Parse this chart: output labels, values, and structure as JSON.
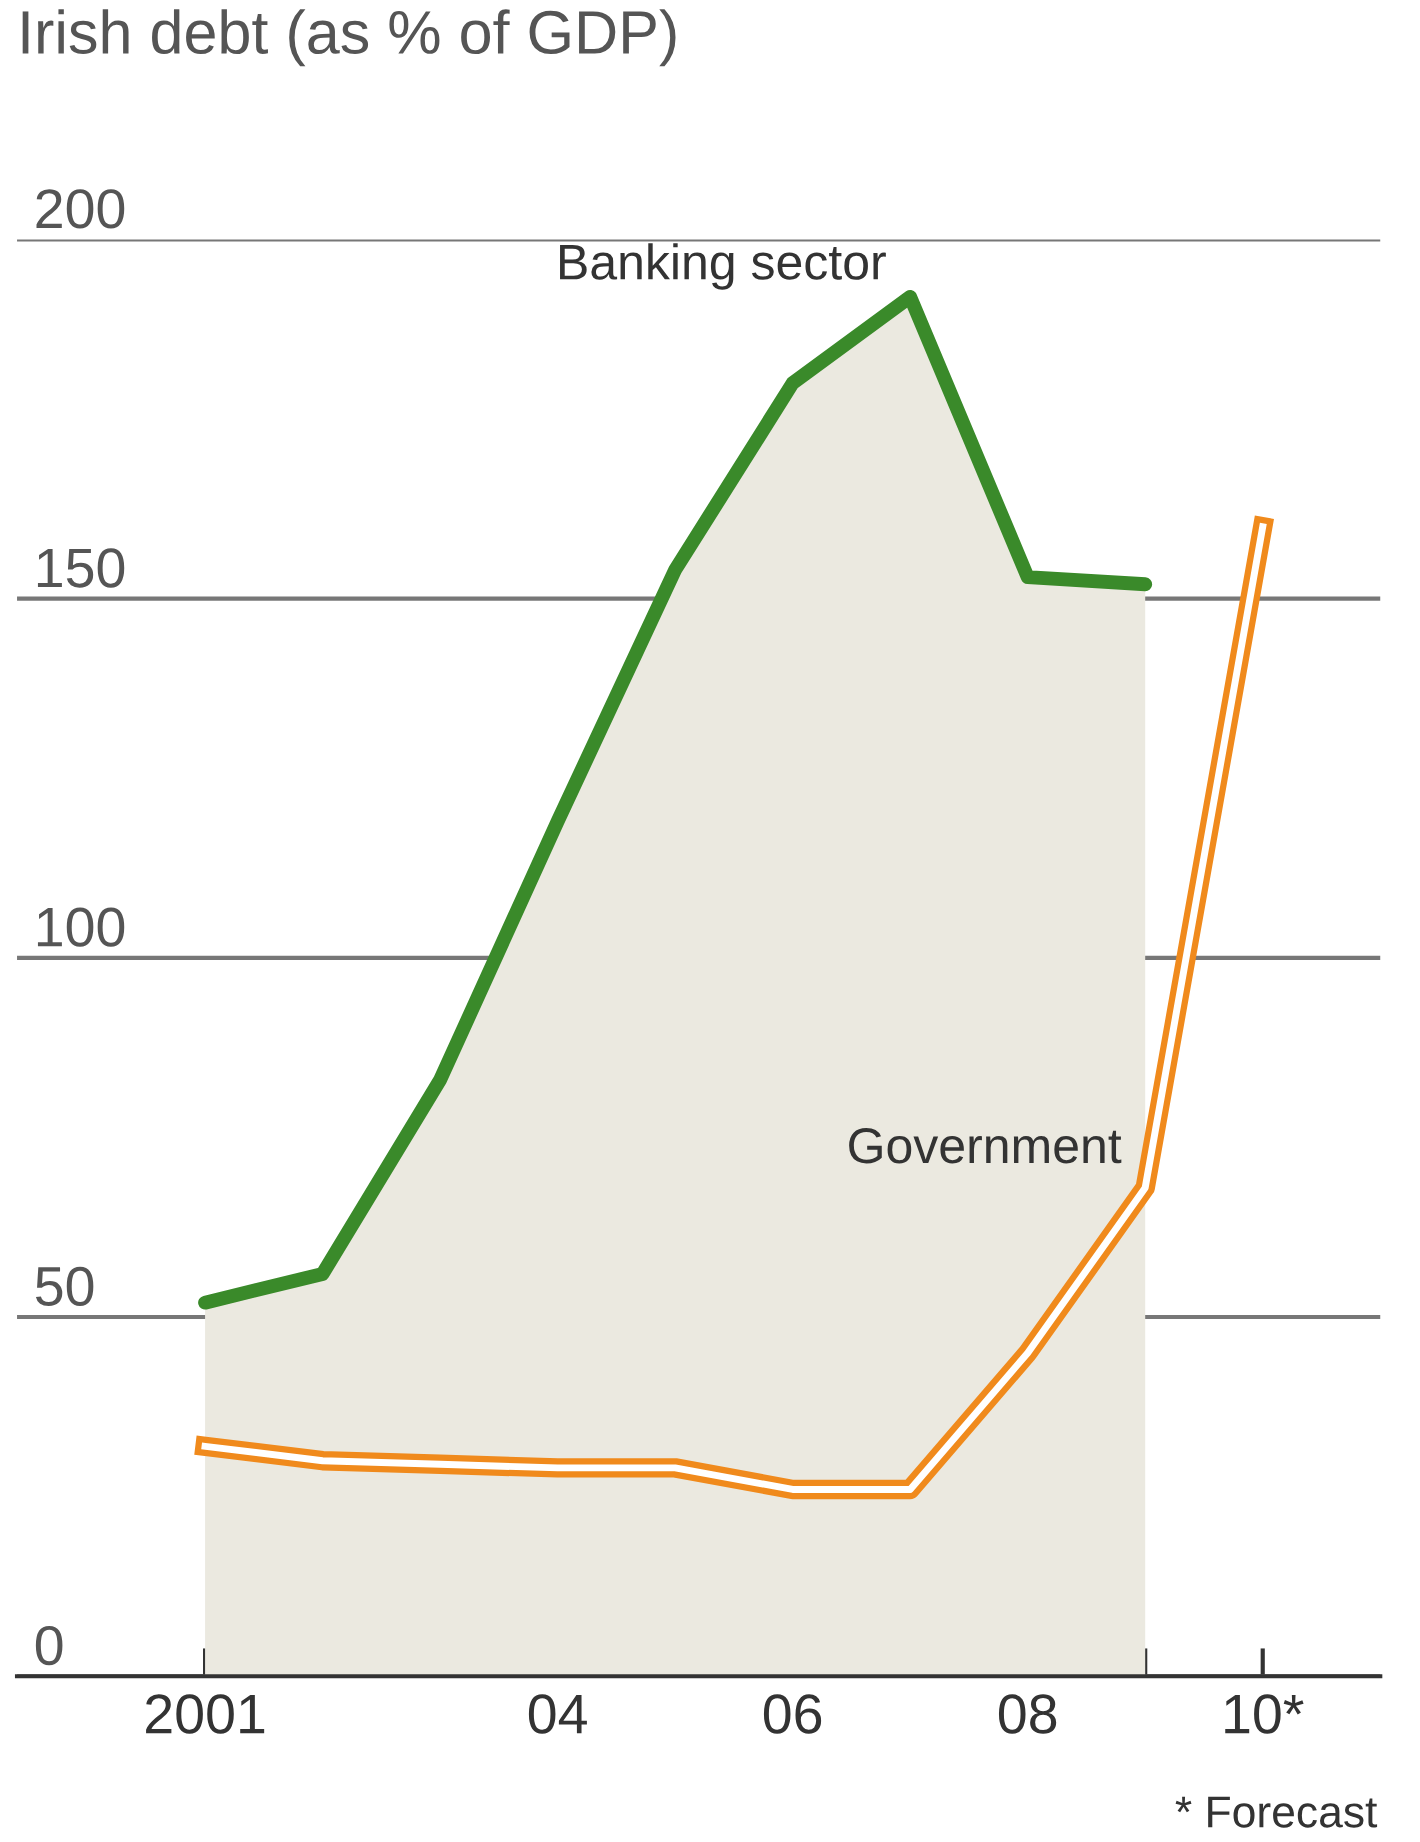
{
  "chart_data": {
    "type": "line",
    "title": "Irish debt (as % of GDP)",
    "categories": [
      "2001",
      null,
      null,
      "04",
      null,
      "06",
      null,
      "08",
      null,
      "10*"
    ],
    "series": [
      {
        "name": "Banking sector",
        "type": "area",
        "color": "#3a8a2a",
        "values": [
          52,
          56,
          83,
          119,
          154,
          180,
          192,
          153,
          152,
          null
        ]
      },
      {
        "name": "Government",
        "color": "#f08a1c",
        "values": [
          32,
          30,
          29.5,
          29,
          29,
          26,
          26,
          45,
          68,
          160
        ]
      }
    ],
    "ylim": [
      0,
      200
    ],
    "yticks": [
      0,
      50,
      100,
      150,
      200
    ],
    "grid": "y",
    "legend": false,
    "annotations": [
      "* Forecast"
    ]
  }
}
